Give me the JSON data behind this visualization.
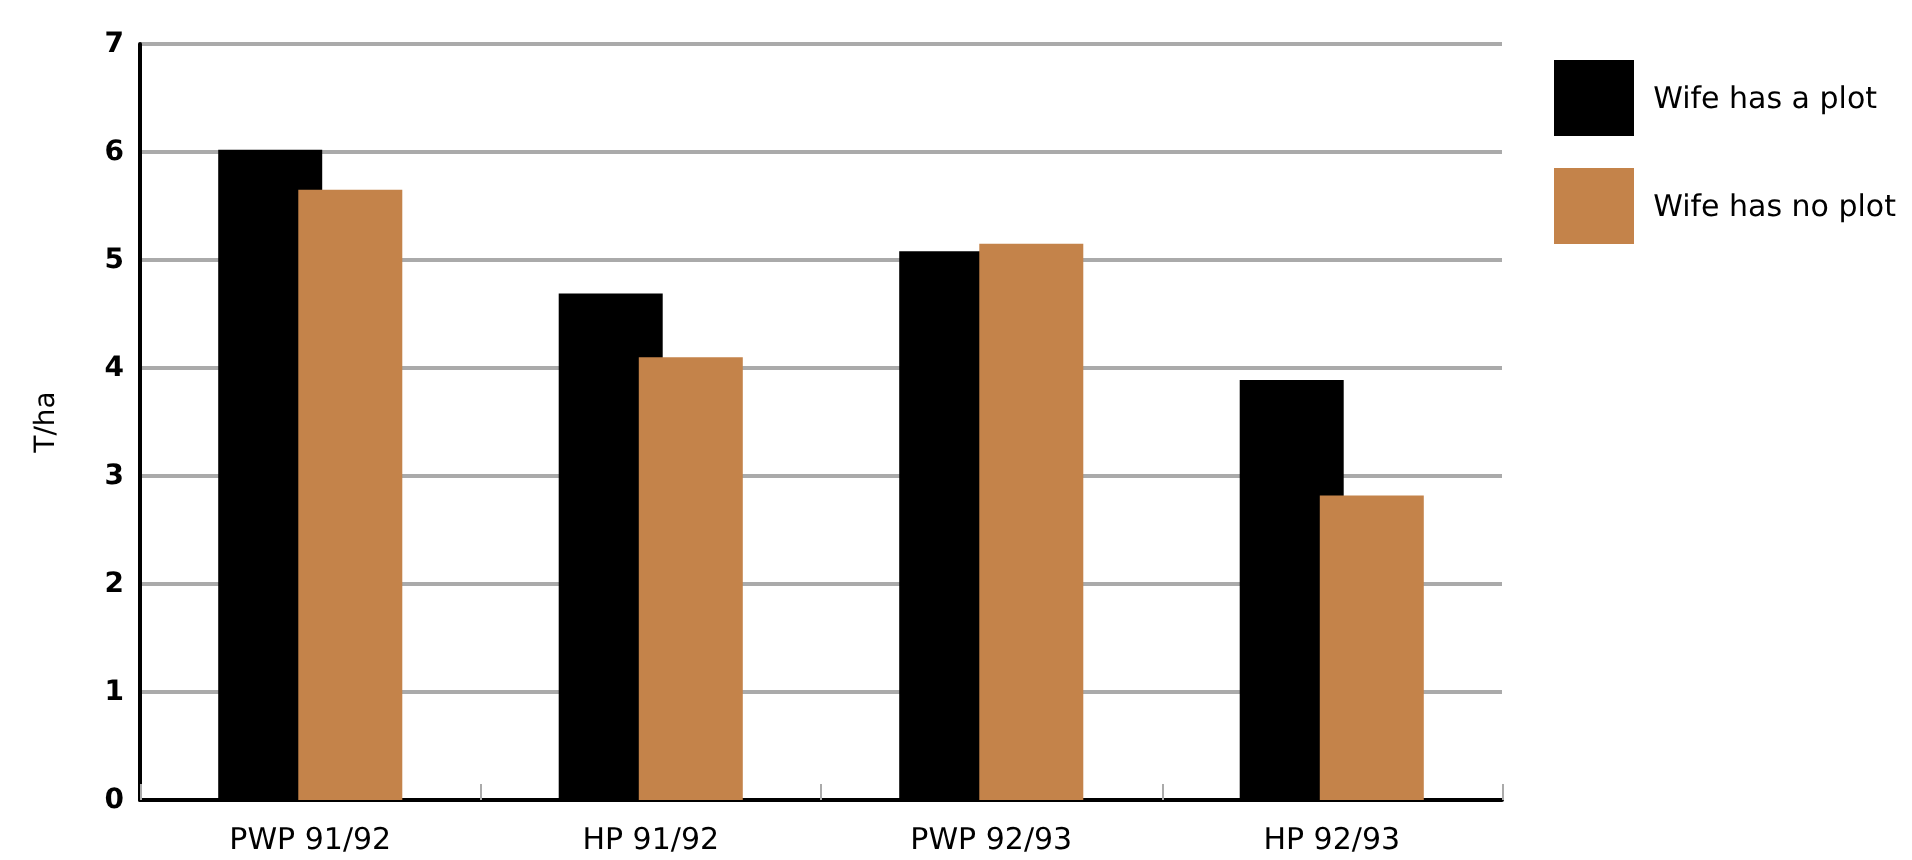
{
  "chart_data": {
    "type": "bar",
    "ylabel": "T/ha",
    "categories": [
      "PWP 91/92",
      "HP 91/92",
      "PWP 92/93",
      "HP 92/93"
    ],
    "series": [
      {
        "name": "Wife has a plot",
        "color": "#000000",
        "values": [
          6.02,
          4.69,
          5.08,
          3.89
        ]
      },
      {
        "name": "Wife has no plot",
        "color": "#c4834a",
        "values": [
          5.65,
          4.1,
          5.15,
          2.82
        ]
      }
    ],
    "ylim": [
      0,
      7
    ],
    "yticks": [
      0,
      1,
      2,
      3,
      4,
      5,
      6,
      7
    ],
    "grid": "y",
    "legend": "top right"
  }
}
